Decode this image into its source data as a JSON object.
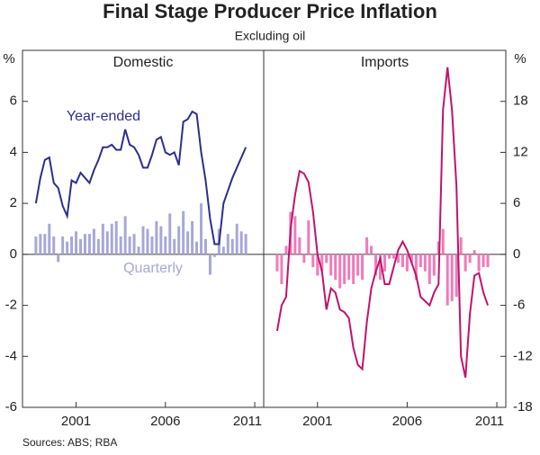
{
  "title": "Final Stage Producer Price Inflation",
  "subtitle": "Excluding oil",
  "source": "Sources: ABS; RBA",
  "chart_data": [
    {
      "type": "line",
      "title": "Domestic",
      "y_label": "%",
      "x": [
        1998.75,
        1999.0,
        1999.25,
        1999.5,
        1999.75,
        2000.0,
        2000.25,
        2000.5,
        2000.75,
        2001.0,
        2001.25,
        2001.5,
        2001.75,
        2002.0,
        2002.25,
        2002.5,
        2002.75,
        2003.0,
        2003.25,
        2003.5,
        2003.75,
        2004.0,
        2004.25,
        2004.5,
        2004.75,
        2005.0,
        2005.25,
        2005.5,
        2005.75,
        2006.0,
        2006.25,
        2006.5,
        2006.75,
        2007.0,
        2007.25,
        2007.5,
        2007.75,
        2008.0,
        2008.25,
        2008.5,
        2008.75,
        2009.0,
        2009.25,
        2009.5,
        2009.75,
        2010.0,
        2010.25,
        2010.5
      ],
      "series": [
        {
          "name": "Year-ended",
          "type": "line",
          "color": "#2b2f8f",
          "values": [
            2.0,
            3.0,
            3.7,
            3.8,
            2.8,
            2.6,
            1.9,
            1.5,
            2.9,
            2.8,
            3.2,
            3.0,
            2.8,
            3.3,
            3.7,
            4.2,
            4.2,
            4.3,
            4.1,
            4.1,
            4.9,
            4.3,
            4.2,
            3.9,
            3.4,
            3.4,
            3.9,
            4.5,
            4.6,
            4.0,
            3.9,
            4.0,
            3.5,
            5.2,
            5.3,
            5.6,
            5.5,
            4.0,
            2.9,
            1.4,
            0.4,
            0.4,
            2.0,
            2.5,
            3.0,
            3.4,
            3.8,
            4.2
          ]
        },
        {
          "name": "Quarterly",
          "type": "bar",
          "color": "#a7a7d8",
          "values": [
            0.7,
            0.8,
            0.8,
            1.2,
            0.7,
            -0.3,
            0.7,
            0.5,
            0.7,
            0.9,
            0.6,
            0.8,
            0.8,
            1.0,
            0.6,
            1.2,
            0.9,
            1.2,
            1.3,
            0.7,
            1.5,
            0.7,
            0.8,
            0.3,
            1.1,
            1.0,
            0.7,
            1.3,
            1.1,
            0.7,
            1.6,
            0.6,
            1.1,
            1.7,
            0.9,
            1.3,
            0.5,
            2.0,
            0.6,
            -0.8,
            -0.1,
            1.0,
            0.3,
            0.8,
            0.6,
            1.2,
            0.9,
            0.8
          ]
        }
      ],
      "xlim": [
        1998,
        2011.5
      ],
      "xticks": [
        2001,
        2006,
        2011
      ],
      "ylim": [
        -6,
        8
      ],
      "yticks": [
        -6,
        -4,
        -2,
        0,
        2,
        4,
        6
      ]
    },
    {
      "type": "line",
      "title": "Imports",
      "y_label": "%",
      "x": [
        1998.75,
        1999.0,
        1999.25,
        1999.5,
        1999.75,
        2000.0,
        2000.25,
        2000.5,
        2000.75,
        2001.0,
        2001.25,
        2001.5,
        2001.75,
        2002.0,
        2002.25,
        2002.5,
        2002.75,
        2003.0,
        2003.25,
        2003.5,
        2003.75,
        2004.0,
        2004.25,
        2004.5,
        2004.75,
        2005.0,
        2005.25,
        2005.5,
        2005.75,
        2006.0,
        2006.25,
        2006.5,
        2006.75,
        2007.0,
        2007.25,
        2007.5,
        2007.75,
        2008.0,
        2008.25,
        2008.5,
        2008.75,
        2009.0,
        2009.25,
        2009.5,
        2009.75,
        2010.0,
        2010.25,
        2010.5
      ],
      "series": [
        {
          "type": "line",
          "color": "#c0136e",
          "values": [
            -9,
            -6,
            -5,
            3,
            7,
            9.8,
            9.5,
            8.5,
            5,
            0,
            -2,
            -6.5,
            -4,
            -4.5,
            -6.5,
            -6.8,
            -7.5,
            -11,
            -13,
            -13.5,
            -8,
            -4,
            -2,
            -0.5,
            -3.5,
            -3.5,
            -1.5,
            0.5,
            1.5,
            0.5,
            -1,
            -2.5,
            -5,
            -5.5,
            -6,
            -4.5,
            -3.5,
            17,
            22,
            17,
            8,
            -12,
            -14.5,
            -7,
            -2.5,
            -2.2,
            -4.5,
            -6
          ]
        },
        {
          "type": "bar",
          "color": "#f27ab9",
          "values": [
            -2,
            -3.5,
            1,
            5,
            4.5,
            2,
            -1,
            4,
            -1.5,
            -2.5,
            -2,
            -1,
            -2.5,
            -3,
            -4,
            -3.5,
            -3,
            -3.5,
            -2.5,
            -3,
            2,
            1,
            -2.5,
            -3,
            -2,
            -0.5,
            -0.5,
            -1,
            -1.5,
            -2,
            -1,
            -3,
            -1.5,
            -2,
            -3.5,
            -2.5,
            1.5,
            3,
            -6,
            -5.5,
            -5,
            2,
            -2,
            -1,
            0.5,
            -2,
            -1.5,
            -1.5
          ]
        }
      ],
      "xlim": [
        1998,
        2011.5
      ],
      "xticks": [
        2001,
        2006,
        2011
      ],
      "ylim": [
        -18,
        24
      ],
      "yticks": [
        -18,
        -12,
        -6,
        0,
        6,
        12,
        18
      ]
    }
  ]
}
